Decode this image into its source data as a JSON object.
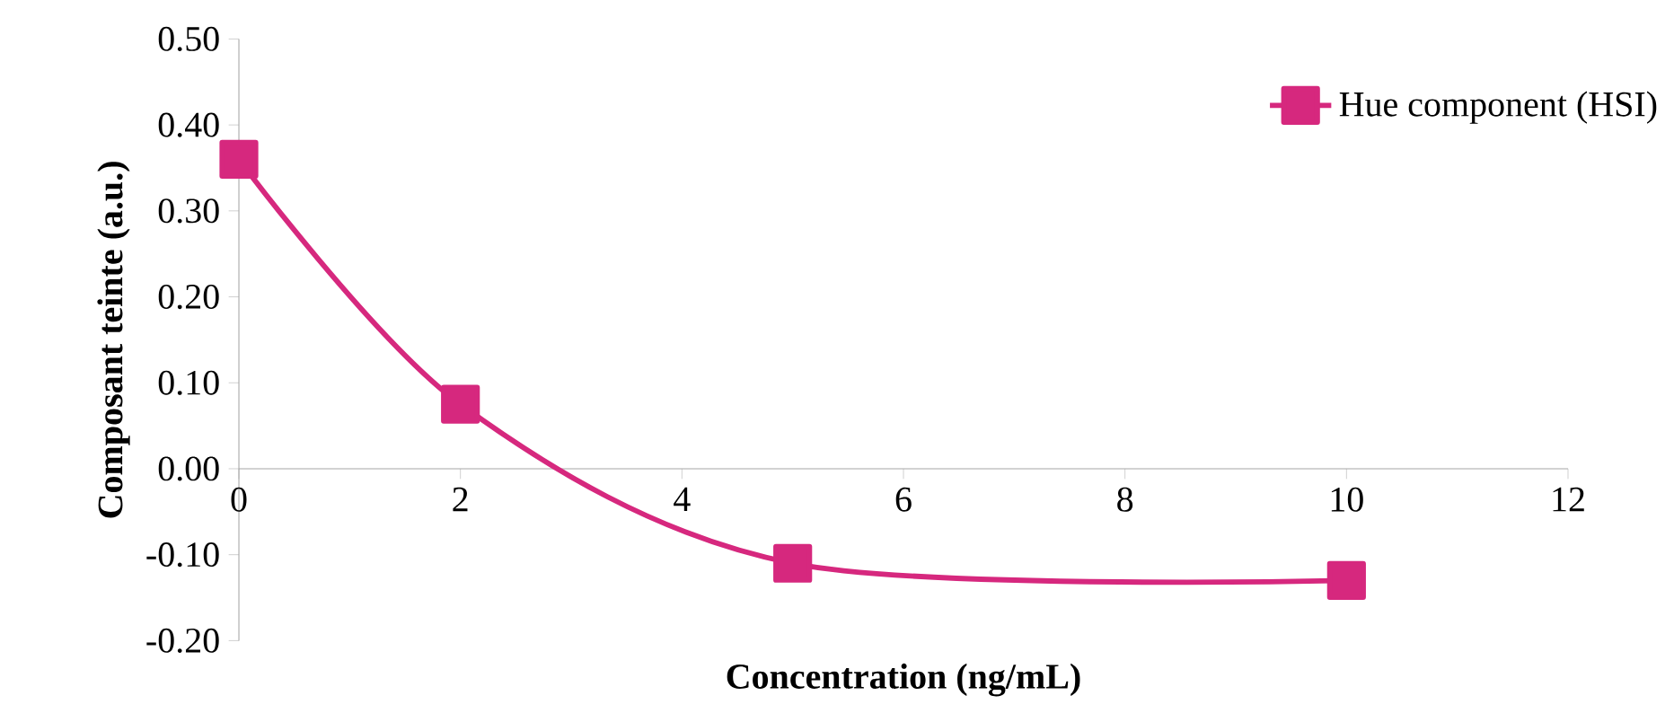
{
  "chart_data": {
    "type": "line",
    "xlabel": "Concentration (ng/mL)",
    "ylabel": "Composant teinte (a.u.)",
    "x": [
      0,
      2,
      5,
      10
    ],
    "series": [
      {
        "name": "Hue component (HSI)",
        "color": "#d6287e",
        "values": [
          0.36,
          0.075,
          -0.11,
          -0.13
        ]
      }
    ],
    "xlim": [
      0,
      12
    ],
    "ylim": [
      -0.2,
      0.5
    ],
    "xticks": [
      0,
      2,
      4,
      6,
      8,
      10,
      12
    ],
    "yticks": [
      {
        "value": -0.2,
        "label": "-0.20"
      },
      {
        "value": -0.1,
        "label": "-0.10"
      },
      {
        "value": 0,
        "label": "0.00"
      },
      {
        "value": 0.1,
        "label": "0.10"
      },
      {
        "value": 0.2,
        "label": "0.20"
      },
      {
        "value": 0.3,
        "label": "0.30"
      },
      {
        "value": 0.4,
        "label": "0.40"
      },
      {
        "value": 0.5,
        "label": "0.50"
      }
    ],
    "legend": "top right",
    "marker": "square",
    "line_style": "solid"
  }
}
